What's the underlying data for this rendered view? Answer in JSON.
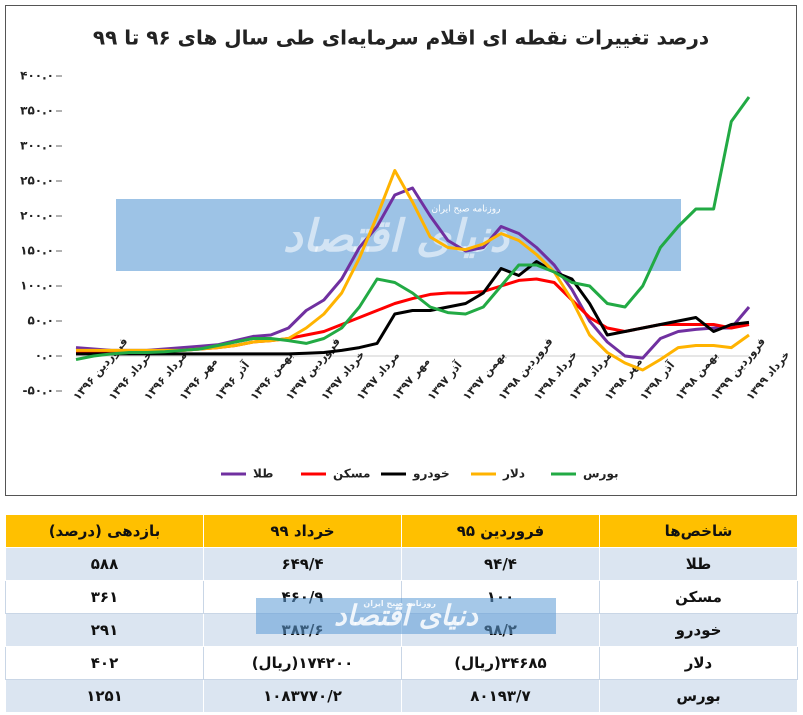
{
  "chart_data": {
    "type": "line",
    "title": "درصد تغییرات نقطه ای اقلام سرمایه‌ای طی سال های ۹۶ تا ۹۹",
    "categories": [
      "فروردین ۱۳۹۶",
      null,
      "خرداد ۱۳۹۶",
      null,
      "مرداد ۱۳۹۶",
      null,
      "مهر ۱۳۹۶",
      null,
      "آذر ۱۳۹۶",
      null,
      "بهمن ۱۳۹۶",
      null,
      "فروردین ۱۳۹۷",
      null,
      "خرداد ۱۳۹۷",
      null,
      "مرداد ۱۳۹۷",
      null,
      "مهر ۱۳۹۷",
      null,
      "آذر ۱۳۹۷",
      null,
      "بهمن ۱۳۹۷",
      null,
      "فروردین ۱۳۹۸",
      null,
      "خرداد ۱۳۹۸",
      null,
      "مرداد ۱۳۹۸",
      null,
      "مهر ۱۳۹۸",
      null,
      "آذر ۱۳۹۸",
      null,
      "بهمن ۱۳۹۸",
      null,
      "فروردین ۱۳۹۹",
      null,
      "خرداد ۱۳۹۹"
    ],
    "series": [
      {
        "name": "طلا",
        "color": "#7030a0",
        "values": [
          12,
          10,
          8,
          8,
          8,
          10,
          12,
          14,
          16,
          22,
          28,
          30,
          40,
          65,
          80,
          110,
          155,
          185,
          230,
          240,
          200,
          165,
          150,
          155,
          185,
          175,
          155,
          130,
          95,
          50,
          20,
          0,
          -3,
          25,
          35,
          38,
          40,
          40,
          70
        ]
      },
      {
        "name": "مسکن",
        "color": "#ff0000",
        "values": [
          5,
          5,
          5,
          5,
          6,
          7,
          8,
          10,
          12,
          15,
          20,
          22,
          25,
          30,
          35,
          45,
          55,
          65,
          75,
          82,
          88,
          90,
          90,
          92,
          100,
          108,
          110,
          105,
          80,
          55,
          40,
          35,
          40,
          45,
          45,
          45,
          45,
          40,
          45
        ]
      },
      {
        "name": "خودرو",
        "color": "#000000",
        "values": [
          3,
          3,
          3,
          3,
          3,
          3,
          3,
          3,
          3,
          3,
          3,
          3,
          3,
          4,
          5,
          8,
          12,
          18,
          60,
          65,
          65,
          70,
          75,
          90,
          125,
          115,
          135,
          120,
          110,
          75,
          30,
          35,
          40,
          45,
          50,
          55,
          35,
          45,
          48
        ]
      },
      {
        "name": "دلار",
        "color": "#ffb300",
        "values": [
          8,
          8,
          8,
          8,
          8,
          8,
          8,
          10,
          12,
          15,
          20,
          22,
          25,
          40,
          60,
          90,
          140,
          200,
          265,
          220,
          170,
          155,
          152,
          160,
          175,
          165,
          145,
          120,
          80,
          30,
          5,
          -10,
          -20,
          -5,
          12,
          15,
          15,
          12,
          30
        ]
      },
      {
        "name": "بورس",
        "color": "#22aa44",
        "values": [
          -5,
          0,
          3,
          5,
          5,
          6,
          8,
          10,
          15,
          20,
          25,
          25,
          22,
          18,
          25,
          40,
          70,
          110,
          105,
          90,
          70,
          62,
          60,
          70,
          100,
          130,
          130,
          120,
          105,
          100,
          75,
          70,
          100,
          155,
          185,
          210,
          210,
          335,
          370
        ]
      }
    ],
    "ylim": [
      -50,
      400
    ],
    "yticks": [
      {
        "value": -50,
        "label": "-۵۰.۰"
      },
      {
        "value": 0,
        "label": "۰.۰"
      },
      {
        "value": 50,
        "label": "۵۰.۰"
      },
      {
        "value": 100,
        "label": "۱۰۰.۰"
      },
      {
        "value": 150,
        "label": "۱۵۰.۰"
      },
      {
        "value": 200,
        "label": "۲۰۰.۰"
      },
      {
        "value": 250,
        "label": "۲۵۰.۰"
      },
      {
        "value": 300,
        "label": "۳۰۰.۰"
      },
      {
        "value": 350,
        "label": "۳۵۰.۰"
      },
      {
        "value": 400,
        "label": "۴۰۰.۰"
      }
    ],
    "grid": false,
    "legend": "bottom"
  },
  "watermark": {
    "title": "دنیای اقتصاد",
    "subtitle": "روزنامه صبح ایران"
  },
  "table": {
    "header": [
      "شاخص‌ها",
      "فروردین ۹۵",
      "خرداد ۹۹",
      "بازدهی (درصد)"
    ],
    "rows": [
      [
        "طلا",
        "۹۴/۴",
        "۶۴۹/۴",
        "۵۸۸"
      ],
      [
        "مسکن",
        "۱۰۰",
        "۴۶۰/۹",
        "۳۶۱"
      ],
      [
        "خودرو",
        "۹۸/۲",
        "۳۸۳/۶",
        "۲۹۱"
      ],
      [
        "دلار",
        "۳۴۶۸۵(ریال)",
        "۱۷۴۲۰۰(ریال)",
        "۴۰۲"
      ],
      [
        "بورس",
        "۸۰۱۹۳/۷",
        "۱۰۸۳۷۷۰/۲",
        "۱۲۵۱"
      ]
    ]
  }
}
